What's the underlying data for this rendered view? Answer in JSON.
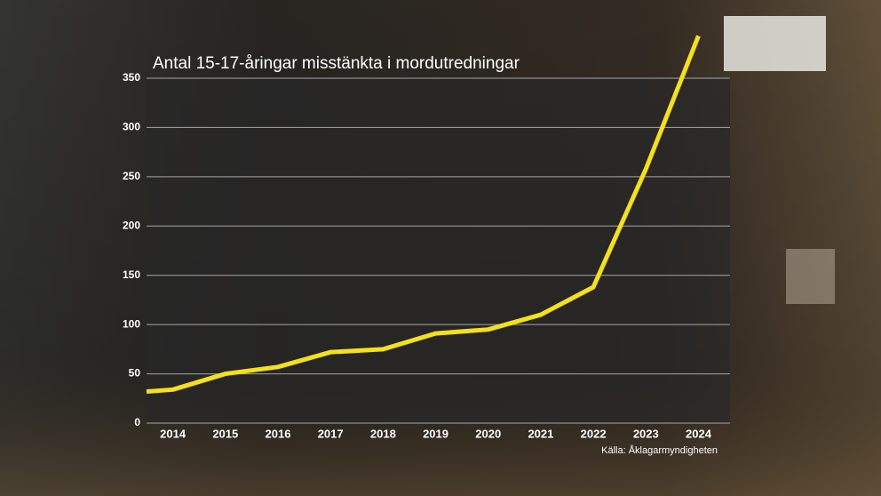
{
  "chart_data": {
    "type": "line",
    "title": "Antal 15-17-åringar misstänkta i mordutredningar",
    "source": "Källa: Åklagarmyndigheten",
    "x": [
      2013.5,
      2014,
      2015,
      2016,
      2017,
      2018,
      2019,
      2020,
      2021,
      2022,
      2023,
      2024
    ],
    "series": [
      {
        "name": "Antal",
        "color": "#f5e01a",
        "values": [
          32,
          34,
          50,
          57,
          72,
          75,
          91,
          95,
          110,
          138,
          258,
          393
        ]
      }
    ],
    "xlim": [
      2013.5,
      2024.6
    ],
    "xticks": [
      2014,
      2015,
      2016,
      2017,
      2018,
      2019,
      2020,
      2021,
      2022,
      2023,
      2024
    ],
    "ylim": [
      0,
      350
    ],
    "yticks": [
      0,
      50,
      100,
      150,
      200,
      250,
      300,
      350
    ],
    "grid": true
  }
}
